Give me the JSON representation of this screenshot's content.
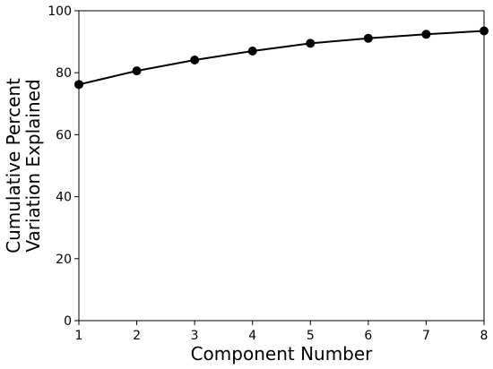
{
  "chart_data": {
    "type": "line",
    "xlabel": "Component Number",
    "ylabel": [
      "Cumulative Percent",
      "Variation Explained"
    ],
    "x": [
      1,
      2,
      3,
      4,
      5,
      6,
      7,
      8
    ],
    "series": [
      {
        "color": "#000000",
        "values": [
          76.2,
          80.6,
          84.1,
          87.0,
          89.5,
          91.1,
          92.4,
          93.5
        ]
      }
    ],
    "xlim": [
      1,
      8
    ],
    "xticks": [
      1,
      2,
      3,
      4,
      5,
      6,
      7,
      8
    ],
    "ylim": [
      0,
      100
    ],
    "yticks": [
      0,
      20,
      40,
      60,
      80,
      100
    ],
    "grid": false,
    "markers": true
  }
}
